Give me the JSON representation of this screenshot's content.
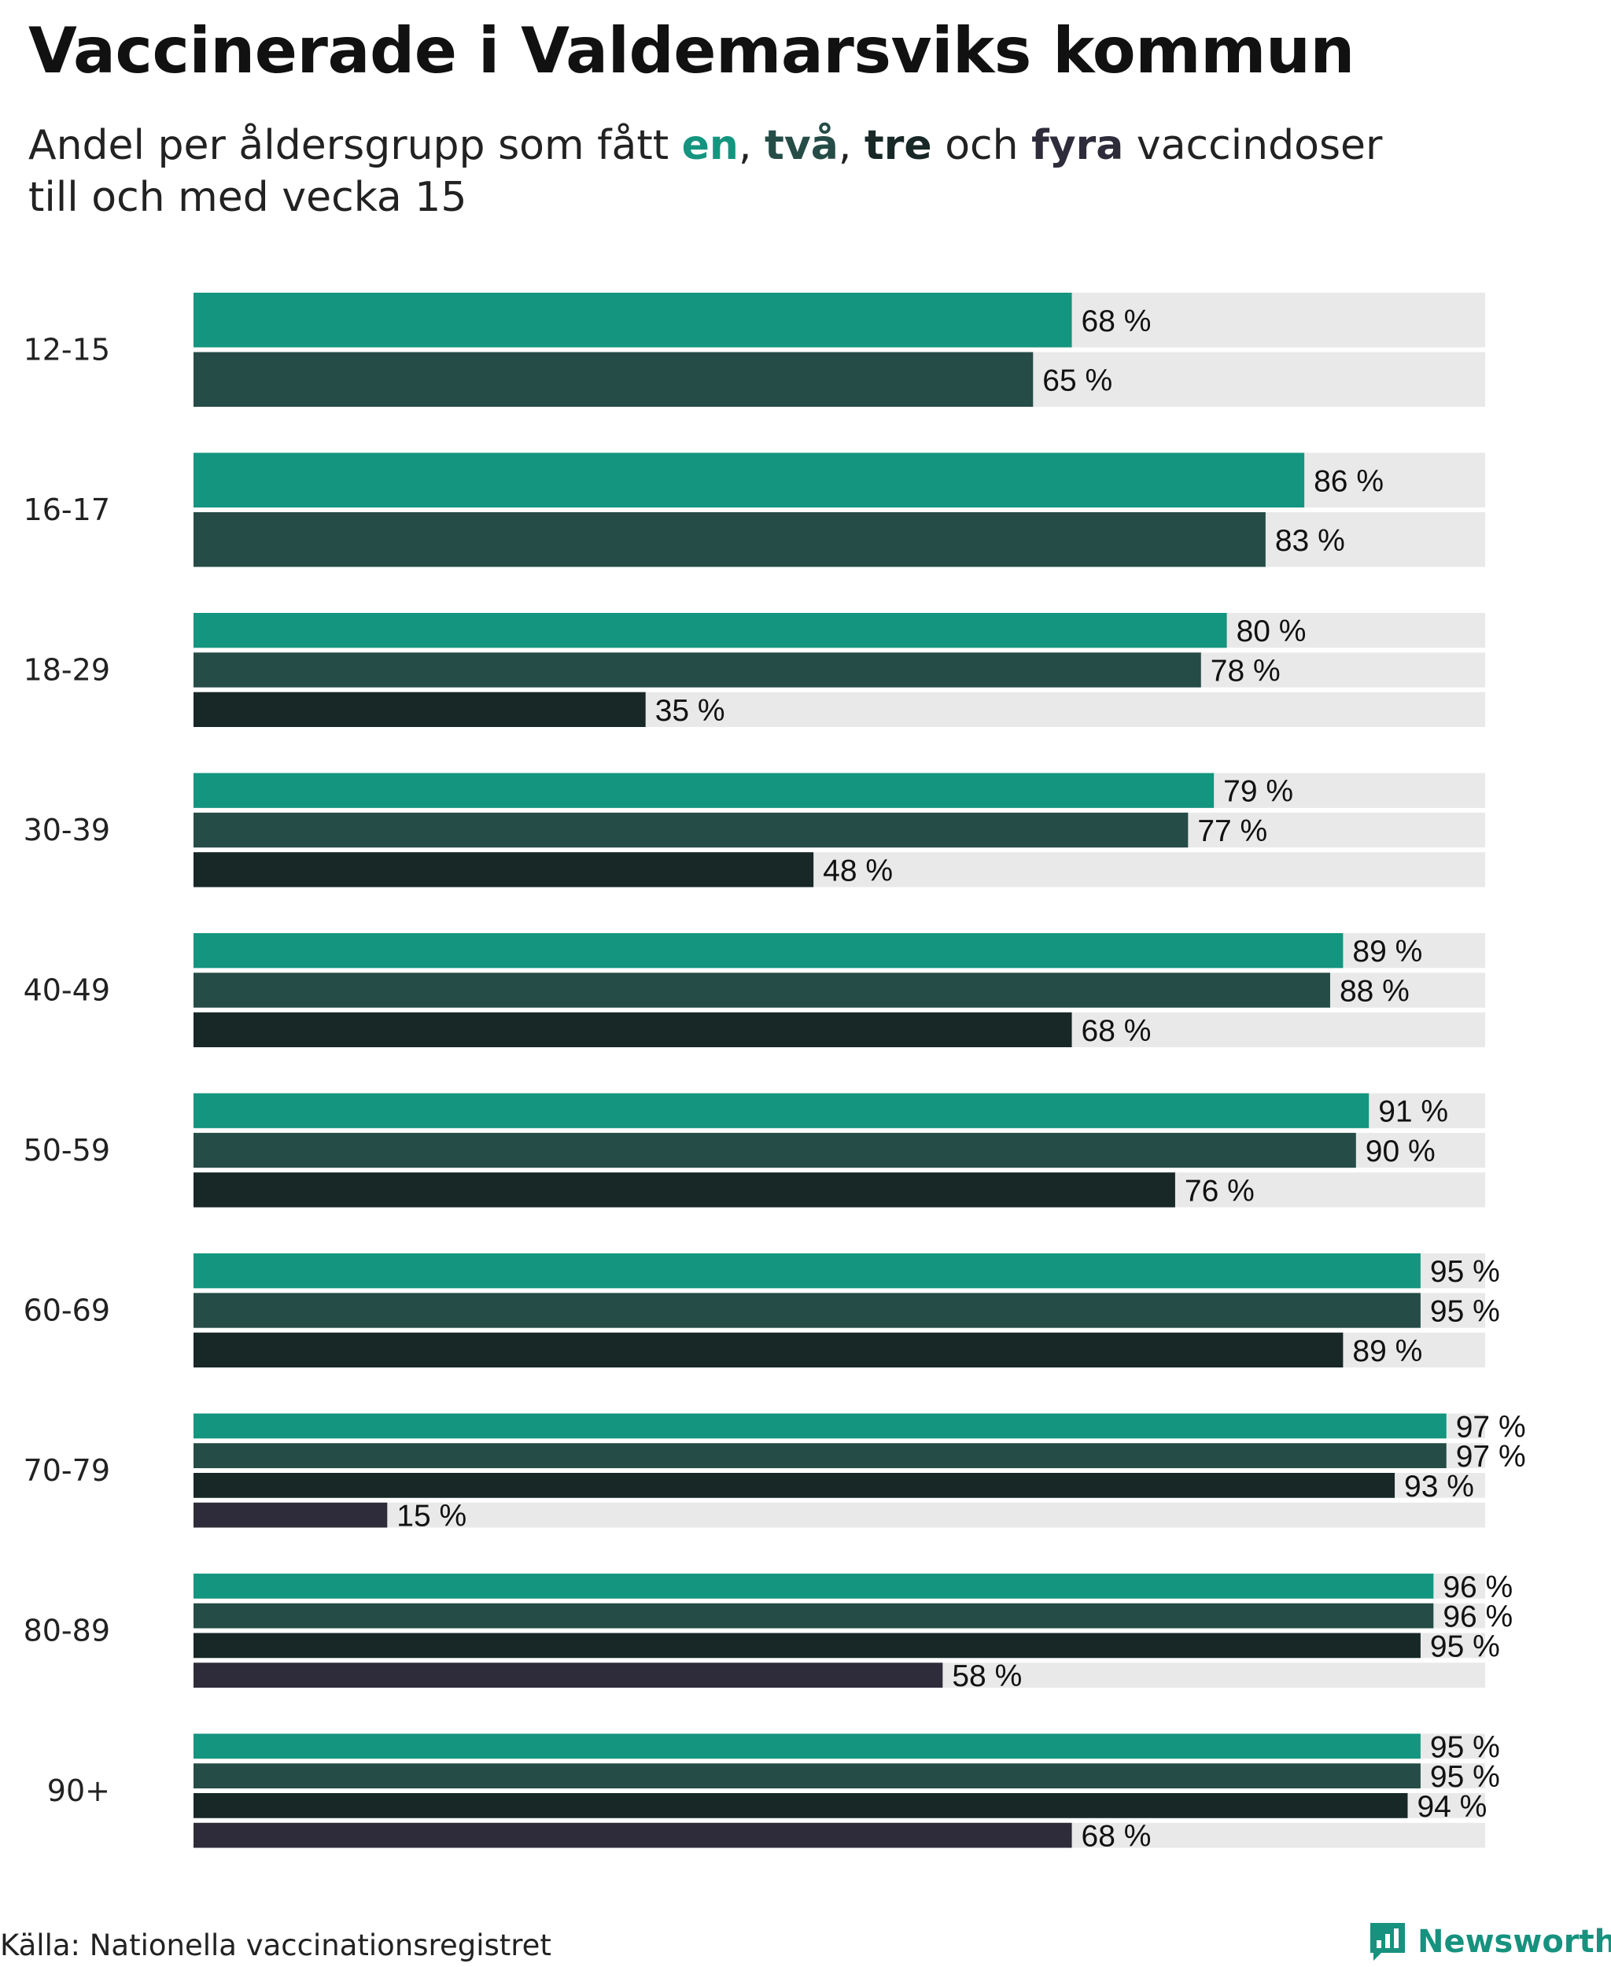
{
  "header": {
    "title": "Vaccinerade i Valdemarsviks kommun",
    "subtitle_prefix": "Andel per åldersgrupp som fått ",
    "dose_words": [
      "en",
      "två",
      "tre",
      "fyra"
    ],
    "sep_1": ", ",
    "sep_2": ", ",
    "sep_3": " och ",
    "subtitle_suffix_line1": " vaccindoser",
    "subtitle_line2": "till och med vecka 15"
  },
  "colors": {
    "dose_1": "#14957f",
    "dose_2": "#254c47",
    "dose_3": "#172826",
    "dose_4": "#2e2c3a",
    "track": "#e9e9e9"
  },
  "chart_data": {
    "type": "bar",
    "orientation": "horizontal",
    "title": "Vaccinerade i Valdemarsviks kommun",
    "subtitle": "Andel per åldersgrupp som fått en, två, tre och fyra vaccindoser till och med vecka 15",
    "xlim": [
      0,
      100
    ],
    "unit": "%",
    "value_suffix": " %",
    "categories": [
      "12-15",
      "16-17",
      "18-29",
      "30-39",
      "40-49",
      "50-59",
      "60-69",
      "70-79",
      "80-89",
      "90+"
    ],
    "series": [
      {
        "name": "en",
        "color": "#14957f",
        "values": [
          68,
          86,
          80,
          79,
          89,
          91,
          95,
          97,
          96,
          95
        ]
      },
      {
        "name": "två",
        "color": "#254c47",
        "values": [
          65,
          83,
          78,
          77,
          88,
          90,
          95,
          97,
          96,
          95
        ]
      },
      {
        "name": "tre",
        "color": "#172826",
        "values": [
          null,
          null,
          35,
          48,
          68,
          76,
          89,
          93,
          95,
          94
        ]
      },
      {
        "name": "fyra",
        "color": "#2e2c3a",
        "values": [
          null,
          null,
          null,
          null,
          null,
          null,
          null,
          15,
          58,
          68
        ]
      }
    ]
  },
  "footer": {
    "source": "Källa: Nationella vaccinationsregistret",
    "brand": "Newsworthy",
    "brand_icon": "newsworthy-logo-icon"
  }
}
